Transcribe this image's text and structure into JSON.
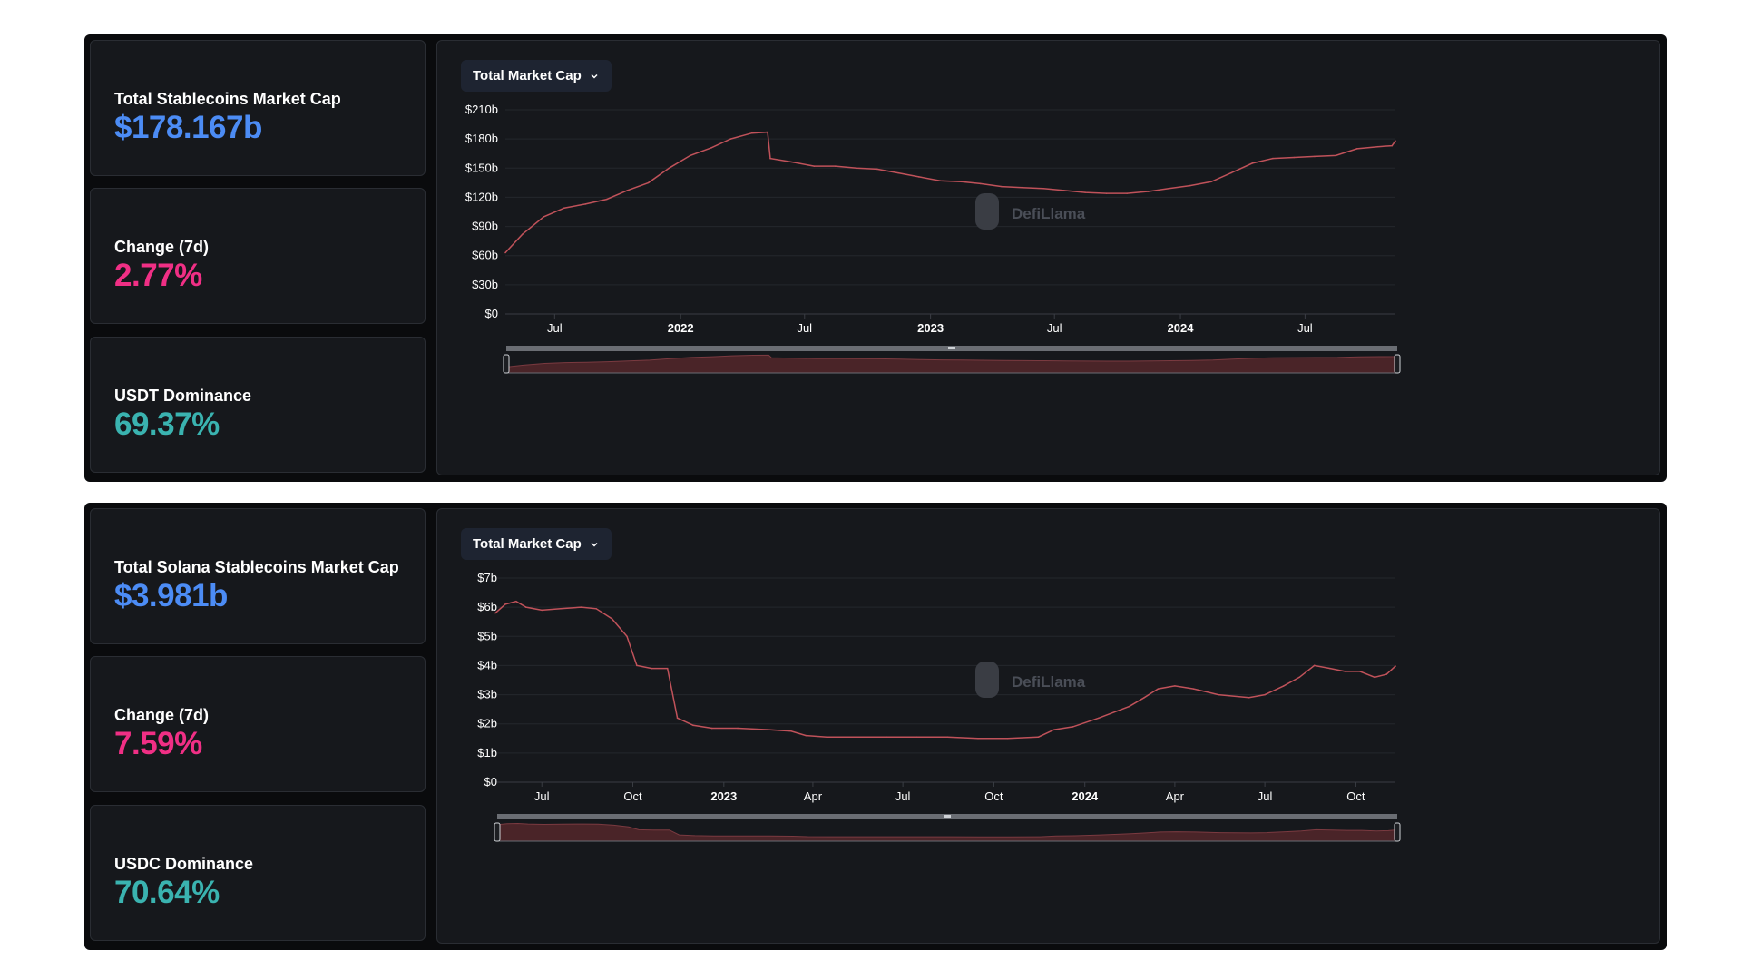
{
  "colors": {
    "value_blue": "#4c8cf5",
    "value_pink": "#f02f85",
    "value_teal": "#3ab3b0",
    "line": "#c0525a"
  },
  "watermark": "DefiLlama",
  "panels": [
    {
      "stats": [
        {
          "label": "Total Stablecoins Market Cap",
          "value": "$178.167b",
          "color": "blue"
        },
        {
          "label": "Change (7d)",
          "value": "2.77%",
          "color": "pink"
        },
        {
          "label": "USDT Dominance",
          "value": "69.37%",
          "color": "teal"
        }
      ],
      "dropdown": "Total Market Cap"
    },
    {
      "stats": [
        {
          "label": "Total Solana Stablecoins Market Cap",
          "value": "$3.981b",
          "color": "blue"
        },
        {
          "label": "Change (7d)",
          "value": "7.59%",
          "color": "pink"
        },
        {
          "label": "USDC Dominance",
          "value": "70.64%",
          "color": "teal"
        }
      ],
      "dropdown": "Total Market Cap"
    }
  ],
  "chart_data": [
    {
      "type": "line",
      "title": "Total Market Cap",
      "x_range": [
        "2021-04-20",
        "2024-11-10"
      ],
      "ylim": [
        0,
        210
      ],
      "y_unit": "b",
      "y_ticks": [
        "$0",
        "$30b",
        "$60b",
        "$90b",
        "$120b",
        "$150b",
        "$180b",
        "$210b"
      ],
      "x_ticks": [
        {
          "date": "2021-07-01",
          "label": "Jul",
          "bold": false
        },
        {
          "date": "2022-01-01",
          "label": "2022",
          "bold": true
        },
        {
          "date": "2022-07-01",
          "label": "Jul",
          "bold": false
        },
        {
          "date": "2023-01-01",
          "label": "2023",
          "bold": true
        },
        {
          "date": "2023-07-01",
          "label": "Jul",
          "bold": false
        },
        {
          "date": "2024-01-01",
          "label": "2024",
          "bold": true
        },
        {
          "date": "2024-07-01",
          "label": "Jul",
          "bold": false
        }
      ],
      "grid": true,
      "x": [
        "2021-04-20",
        "2021-05-15",
        "2021-06-15",
        "2021-07-15",
        "2021-08-15",
        "2021-09-15",
        "2021-10-15",
        "2021-11-15",
        "2021-12-15",
        "2022-01-15",
        "2022-02-15",
        "2022-03-15",
        "2022-04-15",
        "2022-05-08",
        "2022-05-12",
        "2022-06-15",
        "2022-07-15",
        "2022-08-15",
        "2022-09-15",
        "2022-10-15",
        "2022-11-15",
        "2022-12-15",
        "2023-01-15",
        "2023-02-15",
        "2023-03-15",
        "2023-04-15",
        "2023-05-15",
        "2023-06-15",
        "2023-07-15",
        "2023-08-15",
        "2023-09-15",
        "2023-10-15",
        "2023-11-15",
        "2023-12-15",
        "2024-01-15",
        "2024-02-15",
        "2024-03-15",
        "2024-04-15",
        "2024-05-15",
        "2024-06-15",
        "2024-07-15",
        "2024-08-15",
        "2024-09-15",
        "2024-10-15",
        "2024-11-05",
        "2024-11-10"
      ],
      "values": [
        63,
        82,
        100,
        109,
        113,
        118,
        127,
        135,
        150,
        163,
        171,
        180,
        186,
        187,
        160,
        156,
        152,
        152,
        150,
        149,
        145,
        141,
        137,
        136,
        134,
        131,
        130,
        129,
        127,
        125,
        124,
        124,
        126,
        129,
        132,
        136,
        145,
        155,
        160,
        161,
        162,
        163,
        170,
        172,
        173,
        178
      ]
    },
    {
      "type": "line",
      "title": "Total Market Cap",
      "x_range": [
        "2022-05-15",
        "2024-11-10"
      ],
      "ylim": [
        0,
        7
      ],
      "y_unit": "b",
      "y_ticks": [
        "$0",
        "$1b",
        "$2b",
        "$3b",
        "$4b",
        "$5b",
        "$6b",
        "$7b"
      ],
      "x_ticks": [
        {
          "date": "2022-07-01",
          "label": "Jul",
          "bold": false
        },
        {
          "date": "2022-10-01",
          "label": "Oct",
          "bold": false
        },
        {
          "date": "2023-01-01",
          "label": "2023",
          "bold": true
        },
        {
          "date": "2023-04-01",
          "label": "Apr",
          "bold": false
        },
        {
          "date": "2023-07-01",
          "label": "Jul",
          "bold": false
        },
        {
          "date": "2023-10-01",
          "label": "Oct",
          "bold": false
        },
        {
          "date": "2024-01-01",
          "label": "2024",
          "bold": true
        },
        {
          "date": "2024-04-01",
          "label": "Apr",
          "bold": false
        },
        {
          "date": "2024-07-01",
          "label": "Jul",
          "bold": false
        },
        {
          "date": "2024-10-01",
          "label": "Oct",
          "bold": false
        }
      ],
      "grid": true,
      "x": [
        "2022-05-15",
        "2022-05-25",
        "2022-06-05",
        "2022-06-15",
        "2022-07-01",
        "2022-07-20",
        "2022-08-10",
        "2022-08-25",
        "2022-09-10",
        "2022-09-25",
        "2022-10-05",
        "2022-10-20",
        "2022-11-05",
        "2022-11-15",
        "2022-12-01",
        "2022-12-20",
        "2023-01-15",
        "2023-02-15",
        "2023-03-10",
        "2023-03-25",
        "2023-04-15",
        "2023-05-15",
        "2023-06-15",
        "2023-07-15",
        "2023-08-15",
        "2023-09-15",
        "2023-10-15",
        "2023-11-15",
        "2023-12-01",
        "2023-12-20",
        "2024-01-15",
        "2024-02-15",
        "2024-03-01",
        "2024-03-15",
        "2024-04-01",
        "2024-04-20",
        "2024-05-15",
        "2024-06-15",
        "2024-07-01",
        "2024-07-20",
        "2024-08-05",
        "2024-08-20",
        "2024-09-05",
        "2024-09-20",
        "2024-10-05",
        "2024-10-20",
        "2024-11-01",
        "2024-11-10"
      ],
      "values": [
        5.8,
        6.1,
        6.2,
        6.0,
        5.9,
        5.95,
        6.0,
        5.95,
        5.6,
        5.0,
        4.0,
        3.9,
        3.9,
        2.2,
        1.95,
        1.85,
        1.85,
        1.8,
        1.75,
        1.6,
        1.55,
        1.55,
        1.55,
        1.55,
        1.55,
        1.5,
        1.5,
        1.55,
        1.8,
        1.9,
        2.2,
        2.6,
        2.9,
        3.2,
        3.3,
        3.2,
        3.0,
        2.9,
        3.0,
        3.3,
        3.6,
        4.0,
        3.9,
        3.8,
        3.8,
        3.6,
        3.7,
        3.98
      ]
    }
  ]
}
